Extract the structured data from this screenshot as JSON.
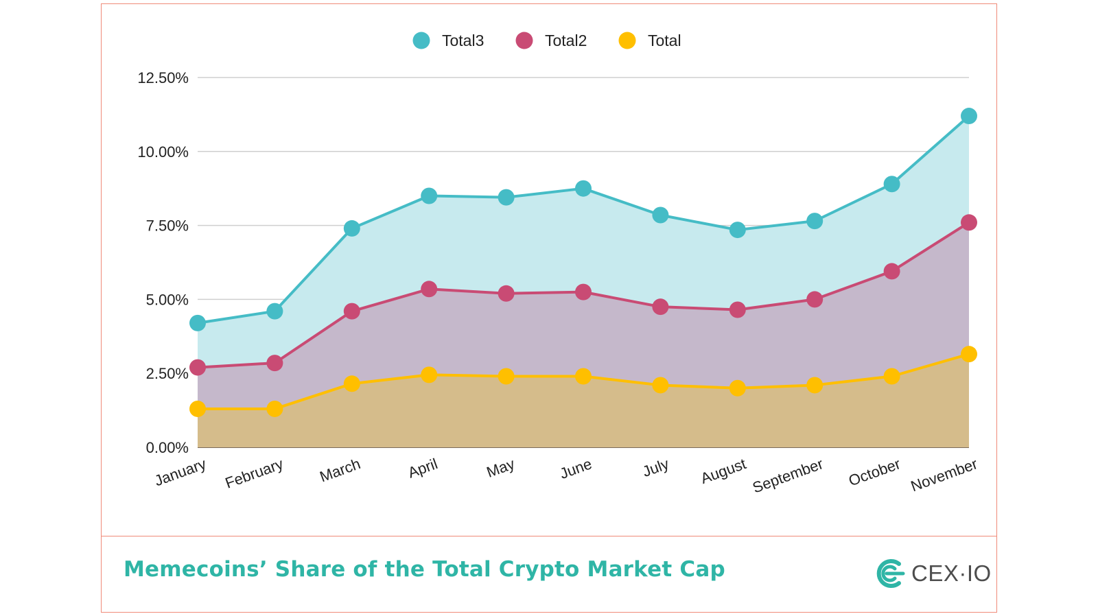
{
  "chart_data": {
    "type": "area",
    "categories": [
      "January",
      "February",
      "March",
      "April",
      "May",
      "June",
      "July",
      "August",
      "September",
      "October",
      "November"
    ],
    "series": [
      {
        "name": "Total3",
        "color": "#45bcc6",
        "fill": "#c7eaee",
        "values": [
          4.2,
          4.6,
          7.4,
          8.5,
          8.45,
          8.75,
          7.85,
          7.35,
          7.65,
          8.9,
          11.2
        ]
      },
      {
        "name": "Total2",
        "color": "#c94b74",
        "fill": "#c5b8cb",
        "values": [
          2.7,
          2.85,
          4.6,
          5.35,
          5.2,
          5.25,
          4.75,
          4.65,
          5.0,
          5.95,
          7.6
        ]
      },
      {
        "name": "Total",
        "color": "#ffbf00",
        "fill": "#d5bc8b",
        "values": [
          1.3,
          1.3,
          2.15,
          2.45,
          2.4,
          2.4,
          2.1,
          2.0,
          2.1,
          2.4,
          3.15
        ]
      }
    ],
    "yticks": [
      "0.00%",
      "2.50%",
      "5.00%",
      "7.50%",
      "10.00%",
      "12.50%"
    ],
    "ylim": [
      0,
      12.5
    ],
    "grid": true,
    "legend_position": "top-center"
  },
  "caption": "Memecoins’ Share of the Total Crypto Market Cap",
  "brand": {
    "name": "CEX·IO",
    "color": "#2fb5a6"
  }
}
